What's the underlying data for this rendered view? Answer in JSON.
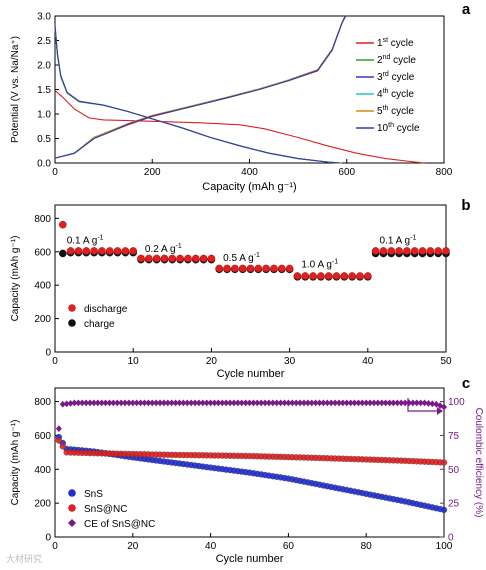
{
  "watermark": "大材研究",
  "chart_data": [
    {
      "panel": "a",
      "type": "line",
      "xlabel": "Capacity (mAh g⁻¹)",
      "ylabel": "Potential (V vs. Na/Na⁺)",
      "xlim": [
        0,
        800
      ],
      "ylim": [
        0.0,
        3.0
      ],
      "xticks": [
        0,
        200,
        400,
        600,
        800
      ],
      "yticks": [
        0.0,
        0.5,
        1.0,
        1.5,
        2.0,
        2.5,
        3.0
      ],
      "legend_position": "right",
      "series": [
        {
          "name": "1",
          "suffix": "st",
          "label": " cycle",
          "color": "#d9221f",
          "discharge": [
            [
              0,
              1.48
            ],
            [
              15,
              1.35
            ],
            [
              40,
              1.1
            ],
            [
              70,
              0.92
            ],
            [
              100,
              0.88
            ],
            [
              200,
              0.85
            ],
            [
              300,
              0.82
            ],
            [
              380,
              0.78
            ],
            [
              430,
              0.7
            ],
            [
              500,
              0.52
            ],
            [
              560,
              0.35
            ],
            [
              620,
              0.2
            ],
            [
              680,
              0.09
            ],
            [
              740,
              0.02
            ],
            [
              760,
              0.0
            ]
          ],
          "charge": [
            [
              0,
              0.1
            ],
            [
              40,
              0.2
            ],
            [
              80,
              0.5
            ],
            [
              110,
              0.62
            ],
            [
              150,
              0.78
            ],
            [
              200,
              0.95
            ],
            [
              280,
              1.15
            ],
            [
              350,
              1.32
            ],
            [
              420,
              1.5
            ],
            [
              480,
              1.68
            ],
            [
              540,
              1.88
            ],
            [
              570,
              2.3
            ],
            [
              590,
              2.85
            ],
            [
              598,
              3.0
            ]
          ]
        },
        {
          "name": "2",
          "suffix": "nd",
          "label": " cycle",
          "color": "#2aa32a",
          "discharge": [
            [
              0,
              2.78
            ],
            [
              5,
              2.2
            ],
            [
              12,
              1.75
            ],
            [
              25,
              1.42
            ],
            [
              50,
              1.25
            ],
            [
              100,
              1.18
            ],
            [
              150,
              1.05
            ],
            [
              200,
              0.9
            ],
            [
              260,
              0.72
            ],
            [
              320,
              0.52
            ],
            [
              380,
              0.35
            ],
            [
              440,
              0.2
            ],
            [
              500,
              0.09
            ],
            [
              560,
              0.02
            ],
            [
              590,
              0.0
            ]
          ],
          "charge": [
            [
              0,
              0.1
            ],
            [
              40,
              0.2
            ],
            [
              80,
              0.52
            ],
            [
              110,
              0.64
            ],
            [
              150,
              0.8
            ],
            [
              200,
              0.97
            ],
            [
              280,
              1.16
            ],
            [
              350,
              1.33
            ],
            [
              420,
              1.51
            ],
            [
              480,
              1.69
            ],
            [
              540,
              1.9
            ],
            [
              570,
              2.32
            ],
            [
              590,
              2.86
            ],
            [
              597,
              3.0
            ]
          ]
        },
        {
          "name": "3",
          "suffix": "rd",
          "label": " cycle",
          "color": "#2e3ec9",
          "discharge": [
            [
              0,
              2.8
            ],
            [
              5,
              2.22
            ],
            [
              12,
              1.77
            ],
            [
              25,
              1.43
            ],
            [
              50,
              1.26
            ],
            [
              100,
              1.18
            ],
            [
              150,
              1.05
            ],
            [
              200,
              0.9
            ],
            [
              260,
              0.72
            ],
            [
              320,
              0.52
            ],
            [
              380,
              0.35
            ],
            [
              440,
              0.2
            ],
            [
              500,
              0.09
            ],
            [
              560,
              0.02
            ],
            [
              588,
              0.0
            ]
          ],
          "charge": [
            [
              0,
              0.1
            ],
            [
              40,
              0.2
            ],
            [
              80,
              0.52
            ],
            [
              110,
              0.64
            ],
            [
              150,
              0.8
            ],
            [
              200,
              0.97
            ],
            [
              280,
              1.16
            ],
            [
              350,
              1.33
            ],
            [
              420,
              1.51
            ],
            [
              480,
              1.69
            ],
            [
              540,
              1.9
            ],
            [
              570,
              2.32
            ],
            [
              590,
              2.86
            ],
            [
              597,
              3.0
            ]
          ]
        },
        {
          "name": "4",
          "suffix": "th",
          "label": " cycle",
          "color": "#27c6c6",
          "discharge": [
            [
              0,
              2.8
            ],
            [
              5,
              2.22
            ],
            [
              12,
              1.77
            ],
            [
              25,
              1.43
            ],
            [
              50,
              1.26
            ],
            [
              100,
              1.18
            ],
            [
              150,
              1.05
            ],
            [
              200,
              0.9
            ],
            [
              260,
              0.72
            ],
            [
              320,
              0.52
            ],
            [
              380,
              0.35
            ],
            [
              440,
              0.2
            ],
            [
              500,
              0.09
            ],
            [
              560,
              0.02
            ],
            [
              587,
              0.0
            ]
          ],
          "charge": [
            [
              0,
              0.1
            ],
            [
              40,
              0.2
            ],
            [
              80,
              0.52
            ],
            [
              110,
              0.64
            ],
            [
              150,
              0.8
            ],
            [
              200,
              0.97
            ],
            [
              280,
              1.16
            ],
            [
              350,
              1.33
            ],
            [
              420,
              1.51
            ],
            [
              480,
              1.69
            ],
            [
              540,
              1.9
            ],
            [
              570,
              2.32
            ],
            [
              590,
              2.86
            ],
            [
              597,
              3.0
            ]
          ]
        },
        {
          "name": "5",
          "suffix": "th",
          "label": " cycle",
          "color": "#d98a14",
          "discharge": [
            [
              0,
              2.8
            ],
            [
              5,
              2.22
            ],
            [
              12,
              1.77
            ],
            [
              25,
              1.43
            ],
            [
              50,
              1.26
            ],
            [
              100,
              1.18
            ],
            [
              150,
              1.05
            ],
            [
              200,
              0.9
            ],
            [
              260,
              0.72
            ],
            [
              320,
              0.52
            ],
            [
              380,
              0.35
            ],
            [
              440,
              0.2
            ],
            [
              500,
              0.09
            ],
            [
              560,
              0.02
            ],
            [
              586,
              0.0
            ]
          ],
          "charge": [
            [
              0,
              0.1
            ],
            [
              40,
              0.2
            ],
            [
              80,
              0.52
            ],
            [
              110,
              0.64
            ],
            [
              150,
              0.8
            ],
            [
              200,
              0.97
            ],
            [
              280,
              1.16
            ],
            [
              350,
              1.33
            ],
            [
              420,
              1.51
            ],
            [
              480,
              1.69
            ],
            [
              540,
              1.9
            ],
            [
              570,
              2.32
            ],
            [
              590,
              2.86
            ],
            [
              597,
              3.0
            ]
          ]
        },
        {
          "name": "10",
          "suffix": "th",
          "label": " cycle",
          "color": "#2a3fb0",
          "discharge": [
            [
              0,
              2.82
            ],
            [
              5,
              2.24
            ],
            [
              12,
              1.78
            ],
            [
              25,
              1.44
            ],
            [
              50,
              1.26
            ],
            [
              100,
              1.18
            ],
            [
              150,
              1.05
            ],
            [
              200,
              0.9
            ],
            [
              260,
              0.72
            ],
            [
              320,
              0.52
            ],
            [
              380,
              0.35
            ],
            [
              440,
              0.2
            ],
            [
              500,
              0.09
            ],
            [
              560,
              0.02
            ],
            [
              585,
              0.0
            ]
          ],
          "charge": [
            [
              0,
              0.1
            ],
            [
              40,
              0.2
            ],
            [
              80,
              0.5
            ],
            [
              110,
              0.62
            ],
            [
              150,
              0.79
            ],
            [
              200,
              0.96
            ],
            [
              280,
              1.15
            ],
            [
              350,
              1.32
            ],
            [
              420,
              1.5
            ],
            [
              480,
              1.68
            ],
            [
              540,
              1.89
            ],
            [
              570,
              2.31
            ],
            [
              590,
              2.85
            ],
            [
              597,
              3.0
            ]
          ]
        }
      ]
    },
    {
      "panel": "b",
      "type": "scatter",
      "xlabel": "Cycle number",
      "ylabel": "Capacity (mAh g⁻¹)",
      "xlim": [
        0,
        50
      ],
      "ylim": [
        0,
        880
      ],
      "xticks": [
        0,
        10,
        20,
        30,
        40,
        50
      ],
      "yticks": [
        0,
        200,
        400,
        600,
        800
      ],
      "legend_position": "bottom-left",
      "legend": [
        {
          "name": "discharge",
          "color": "#e02020"
        },
        {
          "name": "charge",
          "color": "#111111"
        }
      ],
      "annotations": [
        {
          "text": "0.1 A g",
          "sup": "-1",
          "x": 1.5,
          "y": 650
        },
        {
          "text": "0.2 A g",
          "sup": "-1",
          "x": 11.5,
          "y": 600
        },
        {
          "text": "0.5 A g",
          "sup": "-1",
          "x": 21.5,
          "y": 545
        },
        {
          "text": "1.0 A g",
          "sup": "-1",
          "x": 31.5,
          "y": 505
        },
        {
          "text": "0.1 A g",
          "sup": "-1",
          "x": 41.5,
          "y": 650
        }
      ],
      "segments": [
        {
          "from": 1,
          "to": 1,
          "discharge": 762,
          "charge": 590
        },
        {
          "from": 2,
          "to": 10,
          "discharge": 605,
          "charge": 595
        },
        {
          "from": 11,
          "to": 20,
          "discharge": 560,
          "charge": 553
        },
        {
          "from": 21,
          "to": 30,
          "discharge": 500,
          "charge": 495
        },
        {
          "from": 31,
          "to": 40,
          "discharge": 455,
          "charge": 450
        },
        {
          "from": 41,
          "to": 50,
          "discharge": 605,
          "charge": 590
        }
      ]
    },
    {
      "panel": "c",
      "type": "scatter",
      "xlabel": "Cycle number",
      "ylabel": "Capacity (mAh g⁻¹)",
      "y2label": "Coulombic efficiency (%)",
      "xlim": [
        0,
        100
      ],
      "ylim": [
        0,
        880
      ],
      "y2lim": [
        0,
        110
      ],
      "xticks": [
        0,
        20,
        40,
        60,
        80,
        100
      ],
      "yticks": [
        0,
        200,
        400,
        600,
        800
      ],
      "y2ticks": [
        0,
        25,
        50,
        75,
        100
      ],
      "legend_position": "bottom-left",
      "series": [
        {
          "name": "SnS",
          "color": "#1f2fd0",
          "marker": "circle",
          "points": [
            [
              1,
              590
            ],
            [
              3,
              520
            ],
            [
              10,
              505
            ],
            [
              20,
              470
            ],
            [
              30,
              440
            ],
            [
              40,
              410
            ],
            [
              50,
              380
            ],
            [
              60,
              345
            ],
            [
              70,
              300
            ],
            [
              80,
              255
            ],
            [
              90,
              210
            ],
            [
              100,
              160
            ]
          ]
        },
        {
          "name": "SnS@NC",
          "color": "#e02020",
          "marker": "circle",
          "points": [
            [
              1,
              570
            ],
            [
              3,
              500
            ],
            [
              10,
              495
            ],
            [
              20,
              490
            ],
            [
              30,
              485
            ],
            [
              40,
              482
            ],
            [
              50,
              478
            ],
            [
              60,
              472
            ],
            [
              70,
              465
            ],
            [
              80,
              458
            ],
            [
              90,
              450
            ],
            [
              100,
              440
            ]
          ]
        },
        {
          "name": "CE of SnS@NC",
          "color": "#7a1a8a",
          "marker": "diamond",
          "axis": "y2",
          "points": [
            [
              1,
              80
            ],
            [
              2,
              98
            ],
            [
              5,
              99
            ],
            [
              20,
              99
            ],
            [
              40,
              99
            ],
            [
              60,
              99
            ],
            [
              80,
              99
            ],
            [
              95,
              99
            ],
            [
              98,
              98
            ],
            [
              100,
              96
            ]
          ]
        }
      ]
    }
  ]
}
